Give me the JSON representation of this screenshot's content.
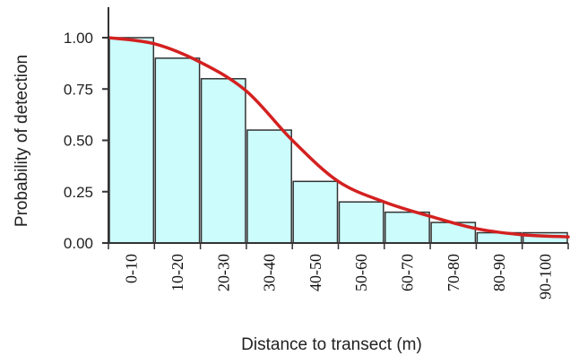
{
  "chart_data": {
    "type": "bar",
    "categories": [
      "0-10",
      "10-20",
      "20-30",
      "30-40",
      "40-50",
      "50-60",
      "60-70",
      "70-80",
      "80-90",
      "90-100"
    ],
    "values": [
      1.0,
      0.9,
      0.8,
      0.55,
      0.3,
      0.2,
      0.15,
      0.1,
      0.05,
      0.05
    ],
    "fitted_curve": {
      "x": [
        0,
        10,
        20,
        30,
        40,
        50,
        60,
        70,
        80,
        90,
        100
      ],
      "y": [
        1.0,
        0.97,
        0.88,
        0.74,
        0.5,
        0.3,
        0.2,
        0.13,
        0.07,
        0.04,
        0.03
      ]
    },
    "xlabel": "Distance to transect (m)",
    "ylabel": "Probability of detection",
    "ylim": [
      0,
      1.15
    ],
    "xlim": [
      0,
      100
    ],
    "yticks": [
      "0.00",
      "0.25",
      "0.50",
      "0.75",
      "1.00"
    ],
    "grid": false,
    "colors": {
      "bar_fill": "#ccfcfc",
      "bar_stroke": "#333333",
      "curve": "#d42020",
      "axis": "#333333"
    }
  }
}
